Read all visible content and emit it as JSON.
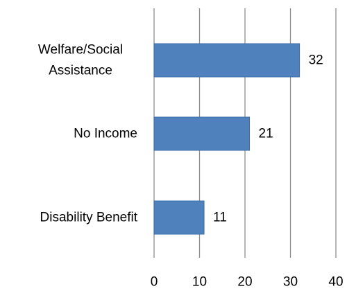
{
  "chart_data": {
    "type": "bar",
    "orientation": "horizontal",
    "categories": [
      "Welfare/Social Assistance",
      "No Income",
      "Disability Benefit"
    ],
    "category_label_lines": [
      [
        "Welfare/Social",
        "Assistance"
      ],
      [
        "No Income"
      ],
      [
        "Disability Benefit"
      ]
    ],
    "values": [
      32,
      21,
      11
    ],
    "value_labels": [
      "32",
      "21",
      "11"
    ],
    "xlim": [
      0,
      40
    ],
    "xticks": [
      "0",
      "10",
      "20",
      "30",
      "40"
    ],
    "title": "",
    "xlabel": "",
    "ylabel": "",
    "grid": "vertical",
    "legend": "none",
    "colors": {
      "bar": "#4f81bd",
      "bar_edge": "#3d6ea5",
      "grid": "#8c8c8c",
      "text": "#000000"
    }
  }
}
